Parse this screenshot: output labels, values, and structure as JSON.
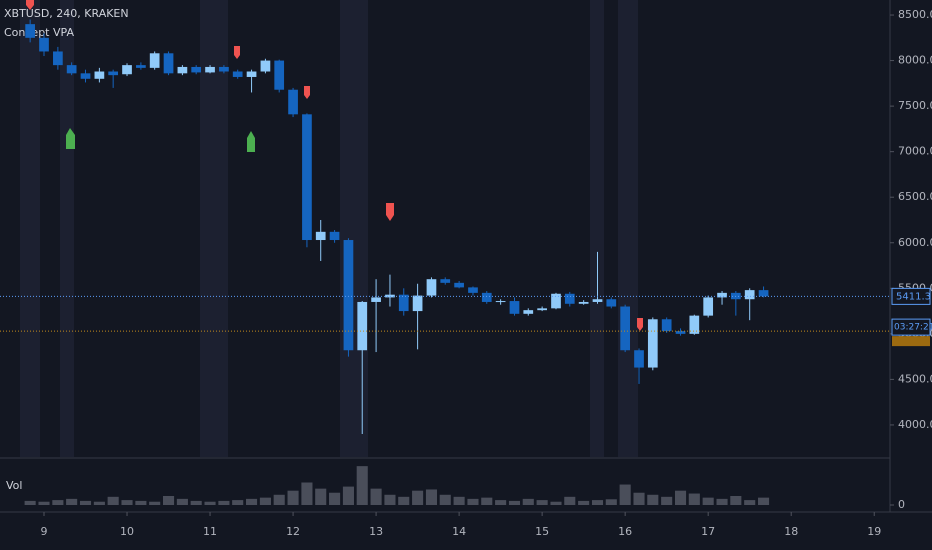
{
  "chart_data": [
    {
      "type": "candlestick",
      "title": "XBTUSD, 240, KRAKEN",
      "subtitle": "Concept VPA",
      "x": [
        8.833,
        9,
        9.167,
        9.333,
        9.5,
        9.667,
        9.833,
        10,
        10.167,
        10.333,
        10.5,
        10.667,
        10.833,
        11,
        11.167,
        11.333,
        11.5,
        11.667,
        11.833,
        12,
        12.167,
        12.333,
        12.5,
        12.667,
        12.833,
        13,
        13.167,
        13.333,
        13.5,
        13.667,
        13.833,
        14,
        14.167,
        14.333,
        14.5,
        14.667,
        14.833,
        15,
        15.167,
        15.333,
        15.5,
        15.667,
        15.833,
        16,
        16.167,
        16.333,
        16.5,
        16.667,
        16.833,
        17,
        17.167,
        17.333,
        17.5,
        17.667
      ],
      "open": [
        8400,
        8250,
        8100,
        7950,
        7860,
        7800,
        7880,
        7850,
        7950,
        7920,
        8080,
        7860,
        7930,
        7870,
        7930,
        7880,
        7820,
        7880,
        8000,
        7680,
        7410,
        6030,
        6120,
        6030,
        4820,
        5350,
        5400,
        5430,
        5250,
        5420,
        5600,
        5560,
        5510,
        5450,
        5350,
        5360,
        5220,
        5260,
        5280,
        5440,
        5330,
        5350,
        5380,
        5300,
        4820,
        4630,
        5160,
        5030,
        5000,
        5200,
        5400,
        5450,
        5380,
        5480
      ],
      "high": [
        8450,
        8300,
        8150,
        7980,
        7900,
        7920,
        7900,
        7970,
        7980,
        8100,
        8100,
        7950,
        7950,
        7950,
        7950,
        7900,
        7900,
        8020,
        8010,
        7700,
        7420,
        6250,
        6140,
        6050,
        5360,
        5600,
        5650,
        5500,
        5550,
        5620,
        5620,
        5580,
        5520,
        5470,
        5380,
        5400,
        5280,
        5300,
        5450,
        5460,
        5370,
        5900,
        5400,
        5320,
        4840,
        5180,
        5180,
        5060,
        5210,
        5420,
        5470,
        5470,
        5500,
        5520
      ],
      "low": [
        8200,
        8050,
        7900,
        7840,
        7760,
        7760,
        7700,
        7830,
        7900,
        7900,
        7840,
        7840,
        7850,
        7860,
        7860,
        7800,
        7650,
        7860,
        7650,
        7380,
        5950,
        5800,
        6000,
        4750,
        3900,
        4800,
        5300,
        5200,
        4830,
        5400,
        5540,
        5500,
        5420,
        5330,
        5320,
        5200,
        5200,
        5250,
        5270,
        5300,
        5320,
        5330,
        5280,
        4800,
        4450,
        4600,
        5010,
        4980,
        4990,
        5180,
        5320,
        5200,
        5150,
        5400
      ],
      "close": [
        8250,
        8100,
        7950,
        7860,
        7800,
        7880,
        7840,
        7950,
        7920,
        8080,
        7860,
        7930,
        7870,
        7930,
        7880,
        7820,
        7880,
        8000,
        7680,
        7410,
        6030,
        6120,
        6030,
        4820,
        5350,
        5400,
        5430,
        5250,
        5420,
        5600,
        5560,
        5510,
        5450,
        5350,
        5360,
        5220,
        5260,
        5280,
        5440,
        5330,
        5350,
        5380,
        5300,
        4820,
        4630,
        5160,
        5030,
        5000,
        5200,
        5400,
        5450,
        5380,
        5480,
        5411.3
      ],
      "up_color": "#90caf9",
      "down_color": "#1565c0",
      "level": 5030,
      "countdown": "03:27:21",
      "xlim": [
        8.47,
        19.19
      ],
      "xticks": [
        9,
        10,
        11,
        12,
        13,
        14,
        15,
        16,
        17,
        18,
        19
      ],
      "ylim": [
        3648,
        8665
      ],
      "yticks": [
        {
          "value": 4000,
          "label": "4000.0"
        },
        {
          "value": 4500,
          "label": "4500.0"
        },
        {
          "value": 5000,
          "label": "5000.0"
        },
        {
          "value": 5500,
          "label": "5500.0"
        },
        {
          "value": 6000,
          "label": "6000.0"
        },
        {
          "value": 6500,
          "label": "6500.0"
        },
        {
          "value": 7000,
          "label": "7000.0"
        },
        {
          "value": 7500,
          "label": "7500.0"
        },
        {
          "value": 8000,
          "label": "8000.0"
        },
        {
          "value": 8500,
          "label": "8500.0"
        }
      ]
    },
    {
      "type": "bar",
      "title": "Vol",
      "color": "#4a4e5a",
      "x": [
        8.833,
        9,
        9.167,
        9.333,
        9.5,
        9.667,
        9.833,
        10,
        10.167,
        10.333,
        10.5,
        10.667,
        10.833,
        11,
        11.167,
        11.333,
        11.5,
        11.667,
        11.833,
        12,
        12.167,
        12.333,
        12.5,
        12.667,
        12.833,
        13,
        13.167,
        13.333,
        13.5,
        13.667,
        13.833,
        14,
        14.167,
        14.333,
        14.5,
        14.667,
        14.833,
        15,
        15.167,
        15.333,
        15.5,
        15.667,
        15.833,
        16,
        16.167,
        16.333,
        16.5,
        16.667,
        16.833,
        17,
        17.167,
        17.333,
        17.5,
        17.667
      ],
      "values": [
        10,
        8,
        12,
        15,
        10,
        8,
        20,
        12,
        10,
        8,
        22,
        15,
        10,
        8,
        10,
        12,
        15,
        18,
        25,
        35,
        55,
        40,
        30,
        45,
        95,
        40,
        25,
        20,
        35,
        38,
        25,
        20,
        15,
        18,
        12,
        10,
        15,
        12,
        8,
        20,
        10,
        12,
        14,
        50,
        30,
        25,
        20,
        35,
        28,
        18,
        15,
        22,
        12,
        18
      ],
      "xlim": [
        8.47,
        19.19
      ],
      "ylim": [
        0,
        110
      ],
      "yticks": [
        0
      ]
    }
  ]
}
